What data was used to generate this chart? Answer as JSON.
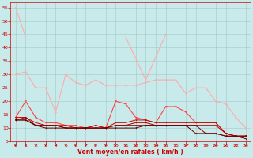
{
  "xlabel": "Vent moyen/en rafales ( km/h )",
  "bg_color": "#c8eaea",
  "grid_color": "#a0c8c8",
  "xlim": [
    -0.5,
    23.5
  ],
  "ylim": [
    5,
    57
  ],
  "yticks": [
    5,
    10,
    15,
    20,
    25,
    30,
    35,
    40,
    45,
    50,
    55
  ],
  "xticks": [
    0,
    1,
    2,
    3,
    4,
    5,
    6,
    7,
    8,
    9,
    10,
    11,
    12,
    13,
    14,
    15,
    16,
    17,
    18,
    19,
    20,
    21,
    22,
    23
  ],
  "series": [
    {
      "x": [
        0,
        1
      ],
      "y": [
        55,
        44
      ],
      "color": "#ffaaaa",
      "lw": 0.8,
      "marker": null,
      "ms": 2
    },
    {
      "x": [
        0,
        1,
        2,
        3,
        4,
        5,
        6,
        7,
        8,
        9,
        10,
        11,
        12,
        13,
        14,
        15,
        16,
        17,
        18,
        19,
        20,
        21,
        22,
        23
      ],
      "y": [
        30,
        31,
        25,
        25,
        16,
        30,
        27,
        26,
        28,
        26,
        26,
        26,
        26,
        27,
        28,
        28,
        28,
        23,
        25,
        25,
        20,
        19,
        14,
        10
      ],
      "color": "#ffaaaa",
      "lw": 0.8,
      "marker": "D",
      "ms": 1.5
    },
    {
      "x": [
        11,
        12,
        13,
        15
      ],
      "y": [
        44,
        36,
        28,
        45
      ],
      "color": "#ffaaaa",
      "lw": 0.8,
      "marker": null,
      "ms": 1.5
    },
    {
      "x": [
        0,
        1,
        2,
        3,
        4,
        5,
        6,
        7,
        8,
        9,
        10,
        11,
        12,
        13,
        14,
        15,
        16,
        17,
        18,
        19,
        20,
        21,
        22,
        23
      ],
      "y": [
        14,
        20,
        14,
        12,
        12,
        11,
        11,
        10,
        11,
        10,
        20,
        19,
        14,
        13,
        12,
        18,
        18,
        16,
        12,
        12,
        12,
        8,
        7,
        7
      ],
      "color": "#ff4444",
      "lw": 0.8,
      "marker": "v",
      "ms": 2
    },
    {
      "x": [
        0,
        1,
        2,
        3,
        4,
        5,
        6,
        7,
        8,
        9,
        10,
        11,
        12,
        13,
        14,
        15,
        16,
        17,
        18,
        19,
        20,
        21,
        22,
        23
      ],
      "y": [
        14,
        14,
        12,
        11,
        11,
        11,
        10,
        10,
        11,
        10,
        12,
        12,
        13,
        13,
        12,
        12,
        12,
        12,
        12,
        12,
        12,
        8,
        7,
        7
      ],
      "color": "#cc0000",
      "lw": 0.7,
      "marker": "v",
      "ms": 1.5
    },
    {
      "x": [
        0,
        1,
        2,
        3,
        4,
        5,
        6,
        7,
        8,
        9,
        10,
        11,
        12,
        13,
        14,
        15,
        16,
        17,
        18,
        19,
        20,
        21,
        22,
        23
      ],
      "y": [
        13,
        14,
        11,
        11,
        11,
        10,
        10,
        10,
        10,
        10,
        11,
        11,
        12,
        12,
        11,
        11,
        11,
        11,
        11,
        11,
        11,
        8,
        7,
        7
      ],
      "color": "#aa0000",
      "lw": 0.7,
      "marker": "v",
      "ms": 1.5
    },
    {
      "x": [
        0,
        1,
        2,
        3,
        4,
        5,
        6,
        7,
        8,
        9,
        10,
        11,
        12,
        13,
        14,
        15,
        16,
        17,
        18,
        19,
        20,
        21,
        22,
        23
      ],
      "y": [
        13,
        13,
        11,
        11,
        11,
        10,
        10,
        10,
        10,
        10,
        11,
        11,
        11,
        11,
        11,
        11,
        11,
        11,
        11,
        8,
        8,
        7,
        7,
        7
      ],
      "color": "#880000",
      "lw": 0.7,
      "marker": "v",
      "ms": 1.5
    },
    {
      "x": [
        0,
        1,
        2,
        3,
        4,
        5,
        6,
        7,
        8,
        9,
        10,
        11,
        12,
        13,
        14,
        15,
        16,
        17,
        18,
        19,
        20,
        21,
        22,
        23
      ],
      "y": [
        13,
        13,
        11,
        10,
        10,
        10,
        10,
        10,
        10,
        10,
        10,
        10,
        10,
        11,
        11,
        11,
        11,
        11,
        8,
        8,
        8,
        7,
        7,
        6
      ],
      "color": "#660000",
      "lw": 0.7,
      "marker": "v",
      "ms": 1.5
    }
  ],
  "arrow_color": "#cc0000"
}
